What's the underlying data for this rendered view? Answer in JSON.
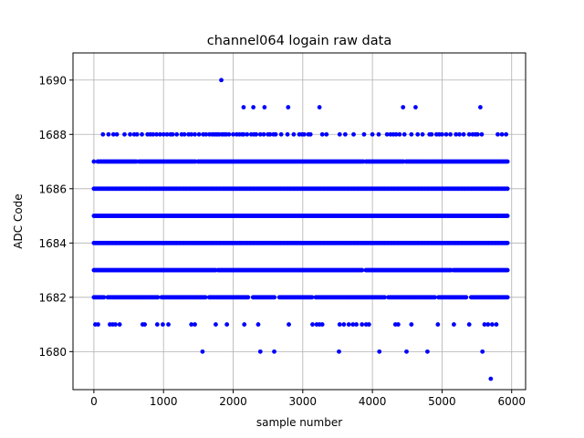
{
  "chart_data": {
    "type": "scatter",
    "title": "channel064 logain raw data",
    "xlabel": "sample number",
    "ylabel": "ADC Code",
    "xlim": [
      -300,
      6200
    ],
    "ylim": [
      1678.6,
      1691.0
    ],
    "xticks": [
      0,
      1000,
      2000,
      3000,
      4000,
      5000,
      6000
    ],
    "xtick_labels": [
      "0",
      "1000",
      "2000",
      "3000",
      "4000",
      "5000",
      "6000"
    ],
    "yticks": [
      1680,
      1682,
      1684,
      1686,
      1688,
      1690
    ],
    "ytick_labels": [
      "1680",
      "1682",
      "1684",
      "1686",
      "1688",
      "1690"
    ],
    "grid": true,
    "marker_color": "#0000ff",
    "x_range": [
      0,
      5940
    ],
    "levels": [
      {
        "y": 1679,
        "x": [
          5700
        ]
      },
      {
        "y": 1680,
        "x": [
          1560,
          2390,
          2590,
          3520,
          4100,
          4490,
          4790,
          5580
        ]
      },
      {
        "y": 1681,
        "x": [
          20,
          60,
          230,
          270,
          310,
          370,
          700,
          730,
          910,
          990,
          1070,
          1400,
          1450,
          1750,
          1910,
          2160,
          2360,
          2800,
          3140,
          3200,
          3240,
          3280,
          3530,
          3590,
          3660,
          3720,
          3770,
          3850,
          3910,
          3950,
          4330,
          4370,
          4560,
          4940,
          5170,
          5390,
          5610,
          5660,
          5720,
          5780
        ]
      },
      {
        "y": 1688,
        "x": [
          130,
          210,
          280,
          330,
          440,
          520,
          580,
          620,
          690,
          770,
          810,
          850,
          900,
          950,
          1000,
          1050,
          1100,
          1130,
          1190,
          1260,
          1300,
          1360,
          1400,
          1450,
          1510,
          1570,
          1610,
          1660,
          1700,
          1730,
          1760,
          1780,
          1800,
          1840,
          1870,
          1900,
          1940,
          2000,
          2050,
          2090,
          2130,
          2150,
          2200,
          2260,
          2300,
          2330,
          2390,
          2440,
          2500,
          2530,
          2580,
          2610,
          2690,
          2780,
          2870,
          2950,
          2990,
          3020,
          3080,
          3110,
          3280,
          3340,
          3530,
          3610,
          3730,
          3880,
          4000,
          4090,
          4210,
          4260,
          4300,
          4340,
          4390,
          4460,
          4560,
          4650,
          4720,
          4820,
          4850,
          4920,
          4960,
          5000,
          5060,
          5120,
          5200,
          5250,
          5310,
          5390,
          5440,
          5480,
          5510,
          5570,
          5800,
          5860,
          5920
        ]
      },
      {
        "y": 1689,
        "x": [
          2150,
          2290,
          2450,
          2790,
          3240,
          4440,
          4620,
          5550
        ]
      },
      {
        "y": 1690,
        "x": [
          1830
        ]
      }
    ],
    "dense_levels": [
      1682,
      1683,
      1684,
      1685,
      1686,
      1687
    ],
    "dense_gaps": {
      "1682": [
        [
          150,
          180
        ],
        [
          920,
          960
        ],
        [
          1610,
          1640
        ],
        [
          2230,
          2270
        ],
        [
          2610,
          2650
        ],
        [
          3140,
          3170
        ],
        [
          4180,
          4220
        ],
        [
          4900,
          4940
        ],
        [
          5360,
          5400
        ]
      ],
      "1683": [
        [
          1760,
          1780
        ],
        [
          3870,
          3890
        ],
        [
          5140,
          5160
        ]
      ],
      "1686": [],
      "1687": [
        [
          10,
          40
        ],
        [
          620,
          640
        ],
        [
          1460,
          1490
        ],
        [
          3880,
          3900
        ],
        [
          4460,
          4480
        ]
      ]
    }
  }
}
